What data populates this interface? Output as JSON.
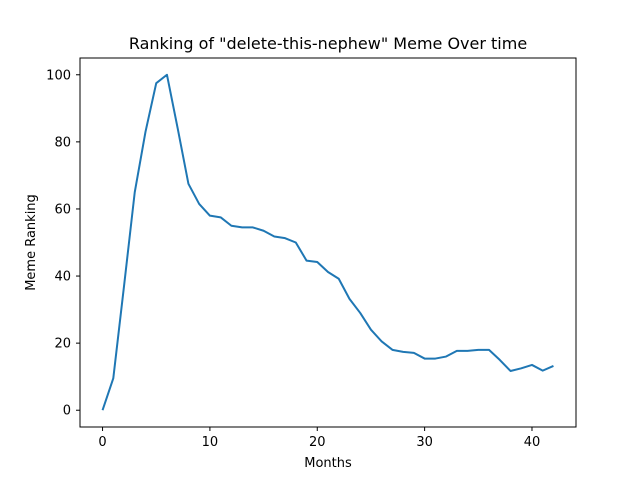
{
  "chart_data": {
    "type": "line",
    "title": "Ranking of \"delete-this-nephew\" Meme Over time",
    "xlabel": "Months",
    "ylabel": "Meme Ranking",
    "xlim": [
      -2.1,
      44.1
    ],
    "ylim": [
      -5,
      105
    ],
    "xticks": [
      0,
      10,
      20,
      30,
      40
    ],
    "yticks": [
      0,
      20,
      40,
      60,
      80,
      100
    ],
    "grid": false,
    "series": [
      {
        "color": "#1f77b4",
        "x": [
          0,
          1,
          2,
          3,
          4,
          5,
          6,
          7,
          8,
          9,
          10,
          11,
          12,
          13,
          14,
          15,
          16,
          17,
          18,
          19,
          20,
          21,
          22,
          23,
          24,
          25,
          26,
          27,
          28,
          29,
          30,
          31,
          32,
          33,
          34,
          35,
          36,
          37,
          38,
          39,
          40,
          41,
          42
        ],
        "values": [
          0,
          9.5,
          37,
          65,
          83,
          97.5,
          100,
          84,
          67.5,
          61.5,
          58,
          57.5,
          55,
          54.5,
          54.5,
          53.5,
          51.8,
          51.3,
          50,
          44.6,
          44.2,
          41.2,
          39.2,
          33.2,
          29,
          24,
          20.5,
          18,
          17.4,
          17.1,
          15.4,
          15.4,
          16,
          17.7,
          17.7,
          18,
          18,
          15,
          11.7,
          12.5,
          13.5,
          11.8,
          13.2
        ]
      }
    ]
  }
}
